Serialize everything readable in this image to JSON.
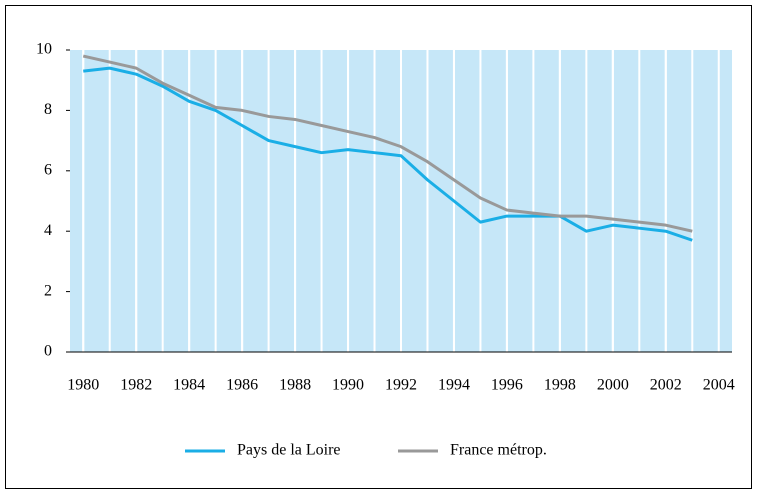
{
  "chart_data": {
    "type": "line",
    "x": [
      1980,
      1981,
      1982,
      1983,
      1984,
      1985,
      1986,
      1987,
      1988,
      1989,
      1990,
      1991,
      1992,
      1993,
      1994,
      1995,
      1996,
      1997,
      1998,
      1999,
      2000,
      2001,
      2002,
      2003
    ],
    "series": [
      {
        "name": "Pays de la Loire",
        "color": "#1aaee6",
        "values": [
          9.3,
          9.4,
          9.2,
          8.8,
          8.3,
          8.0,
          7.5,
          7.0,
          6.8,
          6.6,
          6.7,
          6.6,
          6.5,
          5.7,
          5.0,
          4.3,
          4.5,
          4.5,
          4.5,
          4.0,
          4.2,
          4.1,
          4.0,
          3.7
        ]
      },
      {
        "name": "France métrop.",
        "color": "#999999",
        "values": [
          9.8,
          9.6,
          9.4,
          8.9,
          8.5,
          8.1,
          8.0,
          7.8,
          7.7,
          7.5,
          7.3,
          7.1,
          6.8,
          6.3,
          5.7,
          5.1,
          4.7,
          4.6,
          4.5,
          4.5,
          4.4,
          4.3,
          4.2,
          4.0
        ]
      }
    ],
    "xlim": [
      1979.5,
      2004.5
    ],
    "xticks": [
      1980,
      1982,
      1984,
      1986,
      1988,
      1990,
      1992,
      1994,
      1996,
      1998,
      2000,
      2002,
      2004
    ],
    "ylim": [
      0,
      10
    ],
    "yticks": [
      0,
      2,
      4,
      6,
      8,
      10
    ],
    "grid": true,
    "legend": "bottom",
    "background": "#c6e7f8"
  }
}
